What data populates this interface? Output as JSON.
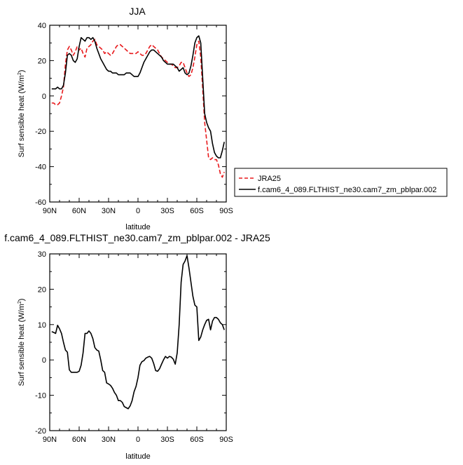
{
  "chart_data": [
    {
      "type": "line",
      "title": "JJA",
      "xlabel": "latitude",
      "ylabel": "Surf sensible heat (W/m²)",
      "ylabel_main": "Surf sensible heat (W/m",
      "ylabel_sup": "2",
      "ylabel_end": ")",
      "xlim": [
        90,
        -90
      ],
      "ylim": [
        -60,
        40
      ],
      "xticks": [
        90,
        60,
        30,
        0,
        -30,
        -60,
        -90
      ],
      "xtick_labels": [
        "90N",
        "60N",
        "30N",
        "0",
        "30S",
        "60S",
        "90S"
      ],
      "yticks": [
        -60,
        -40,
        -20,
        0,
        20,
        40
      ],
      "ytick_labels": [
        "-60",
        "-40",
        "-20",
        "0",
        "20",
        "40"
      ],
      "legend_position": "right",
      "series": [
        {
          "name": "JRA25",
          "color": "#e8191c",
          "dash": "dashed",
          "points": [
            [
              88,
              -4
            ],
            [
              86,
              -4
            ],
            [
              84,
              -5
            ],
            [
              82,
              -5
            ],
            [
              80,
              -4
            ],
            [
              78,
              0
            ],
            [
              76,
              5
            ],
            [
              74,
              18
            ],
            [
              72,
              26
            ],
            [
              70,
              28
            ],
            [
              68,
              26
            ],
            [
              66,
              23
            ],
            [
              64,
              25
            ],
            [
              62,
              28
            ],
            [
              60,
              26
            ],
            [
              58,
              27
            ],
            [
              56,
              24
            ],
            [
              54,
              22
            ],
            [
              52,
              27
            ],
            [
              50,
              28
            ],
            [
              48,
              29
            ],
            [
              46,
              31
            ],
            [
              44,
              32
            ],
            [
              42,
              29
            ],
            [
              40,
              28
            ],
            [
              38,
              27
            ],
            [
              36,
              26
            ],
            [
              34,
              24
            ],
            [
              32,
              25
            ],
            [
              30,
              24
            ],
            [
              28,
              23
            ],
            [
              26,
              24
            ],
            [
              24,
              26
            ],
            [
              22,
              28
            ],
            [
              20,
              29
            ],
            [
              18,
              29
            ],
            [
              16,
              28
            ],
            [
              14,
              27
            ],
            [
              12,
              26
            ],
            [
              10,
              25
            ],
            [
              8,
              24
            ],
            [
              6,
              24
            ],
            [
              4,
              24
            ],
            [
              2,
              24
            ],
            [
              0,
              25
            ],
            [
              -2,
              24
            ],
            [
              -4,
              23
            ],
            [
              -6,
              23
            ],
            [
              -8,
              24
            ],
            [
              -10,
              26
            ],
            [
              -12,
              28
            ],
            [
              -14,
              29
            ],
            [
              -16,
              28
            ],
            [
              -18,
              27
            ],
            [
              -20,
              26
            ],
            [
              -22,
              24
            ],
            [
              -24,
              22
            ],
            [
              -26,
              21
            ],
            [
              -28,
              20
            ],
            [
              -30,
              19
            ],
            [
              -32,
              18
            ],
            [
              -34,
              18
            ],
            [
              -36,
              17
            ],
            [
              -38,
              16
            ],
            [
              -40,
              16
            ],
            [
              -42,
              17
            ],
            [
              -44,
              19
            ],
            [
              -46,
              19
            ],
            [
              -48,
              16
            ],
            [
              -50,
              13
            ],
            [
              -52,
              11
            ],
            [
              -54,
              12
            ],
            [
              -56,
              16
            ],
            [
              -58,
              22
            ],
            [
              -60,
              29
            ],
            [
              -62,
              31
            ],
            [
              -64,
              22
            ],
            [
              -66,
              4
            ],
            [
              -68,
              -15
            ],
            [
              -70,
              -25
            ],
            [
              -72,
              -35
            ],
            [
              -74,
              -36
            ],
            [
              -76,
              -35
            ],
            [
              -78,
              -36
            ],
            [
              -80,
              -36
            ],
            [
              -82,
              -39
            ],
            [
              -84,
              -44
            ],
            [
              -86,
              -46
            ],
            [
              -88,
              -43
            ]
          ]
        },
        {
          "name": "f.cam6_4_089.FLTHIST_ne30.cam7_zm_pblpar.002",
          "color": "#000000",
          "dash": "solid",
          "points": [
            [
              88,
              4
            ],
            [
              86,
              4
            ],
            [
              84,
              4
            ],
            [
              82,
              5
            ],
            [
              80,
              4
            ],
            [
              78,
              4
            ],
            [
              76,
              6
            ],
            [
              74,
              13
            ],
            [
              72,
              23
            ],
            [
              70,
              24
            ],
            [
              68,
              23
            ],
            [
              66,
              20
            ],
            [
              64,
              19
            ],
            [
              62,
              21
            ],
            [
              60,
              28
            ],
            [
              58,
              33
            ],
            [
              56,
              32
            ],
            [
              54,
              31
            ],
            [
              52,
              33
            ],
            [
              50,
              33
            ],
            [
              48,
              32
            ],
            [
              46,
              33
            ],
            [
              44,
              31
            ],
            [
              42,
              27
            ],
            [
              40,
              24
            ],
            [
              38,
              21
            ],
            [
              36,
              19
            ],
            [
              34,
              17
            ],
            [
              32,
              15
            ],
            [
              30,
              14
            ],
            [
              28,
              14
            ],
            [
              26,
              13
            ],
            [
              24,
              13
            ],
            [
              22,
              13
            ],
            [
              20,
              12
            ],
            [
              18,
              12
            ],
            [
              16,
              12
            ],
            [
              14,
              12
            ],
            [
              12,
              13
            ],
            [
              10,
              13
            ],
            [
              8,
              13
            ],
            [
              6,
              12
            ],
            [
              4,
              11
            ],
            [
              2,
              11
            ],
            [
              0,
              11
            ],
            [
              -2,
              13
            ],
            [
              -4,
              16
            ],
            [
              -6,
              19
            ],
            [
              -8,
              21
            ],
            [
              -10,
              23
            ],
            [
              -12,
              25
            ],
            [
              -14,
              26
            ],
            [
              -16,
              26
            ],
            [
              -18,
              25
            ],
            [
              -20,
              24
            ],
            [
              -22,
              23
            ],
            [
              -24,
              22
            ],
            [
              -26,
              20
            ],
            [
              -28,
              19
            ],
            [
              -30,
              18
            ],
            [
              -32,
              18
            ],
            [
              -34,
              18
            ],
            [
              -36,
              18
            ],
            [
              -38,
              17
            ],
            [
              -40,
              16
            ],
            [
              -42,
              14
            ],
            [
              -44,
              15
            ],
            [
              -46,
              16
            ],
            [
              -48,
              13
            ],
            [
              -50,
              12
            ],
            [
              -52,
              13
            ],
            [
              -54,
              17
            ],
            [
              -56,
              23
            ],
            [
              -58,
              30
            ],
            [
              -60,
              33
            ],
            [
              -62,
              34
            ],
            [
              -64,
              30
            ],
            [
              -66,
              10
            ],
            [
              -68,
              -10
            ],
            [
              -70,
              -15
            ],
            [
              -72,
              -18
            ],
            [
              -74,
              -20
            ],
            [
              -76,
              -27
            ],
            [
              -78,
              -32
            ],
            [
              -80,
              -34
            ],
            [
              -82,
              -35
            ],
            [
              -84,
              -35
            ],
            [
              -86,
              -31
            ],
            [
              -88,
              -26
            ]
          ]
        }
      ]
    },
    {
      "type": "line",
      "title": "f.cam6_4_089.FLTHIST_ne30.cam7_zm_pblpar.002 - JRA25",
      "xlabel": "latitude",
      "ylabel": "Surf sensible heat (W/m²)",
      "ylabel_main": "Surf sensible heat (W/m",
      "ylabel_sup": "2",
      "ylabel_end": ")",
      "xlim": [
        90,
        -90
      ],
      "ylim": [
        -20,
        30
      ],
      "xticks": [
        90,
        60,
        30,
        0,
        -30,
        -60,
        -90
      ],
      "xtick_labels": [
        "90N",
        "60N",
        "30N",
        "0",
        "30S",
        "60S",
        "90S"
      ],
      "yticks": [
        -20,
        -10,
        0,
        10,
        20,
        30
      ],
      "ytick_labels": [
        "-20",
        "-10",
        "0",
        "10",
        "20",
        "30"
      ],
      "series": [
        {
          "color": "#000000",
          "dash": "solid",
          "points": [
            [
              88,
              8
            ],
            [
              86,
              7.8
            ],
            [
              84,
              7.5
            ],
            [
              82,
              9.8
            ],
            [
              80,
              8.8
            ],
            [
              78,
              7.5
            ],
            [
              76,
              5
            ],
            [
              74,
              2.8
            ],
            [
              72,
              2.2
            ],
            [
              70,
              -2.8
            ],
            [
              68,
              -3.5
            ],
            [
              66,
              -3.5
            ],
            [
              64,
              -3.5
            ],
            [
              62,
              -3.5
            ],
            [
              60,
              -3.2
            ],
            [
              58,
              -1.5
            ],
            [
              56,
              2
            ],
            [
              54,
              7.5
            ],
            [
              52,
              7.5
            ],
            [
              50,
              8.2
            ],
            [
              48,
              7.5
            ],
            [
              46,
              6
            ],
            [
              44,
              3.5
            ],
            [
              42,
              2.8
            ],
            [
              40,
              2.5
            ],
            [
              38,
              0
            ],
            [
              36,
              -3
            ],
            [
              34,
              -3.5
            ],
            [
              32,
              -6.5
            ],
            [
              30,
              -6.8
            ],
            [
              28,
              -7.2
            ],
            [
              26,
              -8
            ],
            [
              24,
              -9.2
            ],
            [
              22,
              -10
            ],
            [
              20,
              -11.5
            ],
            [
              18,
              -11.5
            ],
            [
              16,
              -12
            ],
            [
              14,
              -13.2
            ],
            [
              12,
              -13.5
            ],
            [
              10,
              -13.8
            ],
            [
              8,
              -13
            ],
            [
              6,
              -11.5
            ],
            [
              4,
              -9
            ],
            [
              2,
              -7.5
            ],
            [
              0,
              -5
            ],
            [
              -2,
              -1.5
            ],
            [
              -4,
              -0.5
            ],
            [
              -6,
              -0.2
            ],
            [
              -8,
              0.5
            ],
            [
              -10,
              0.8
            ],
            [
              -12,
              1
            ],
            [
              -14,
              0.5
            ],
            [
              -16,
              -1
            ],
            [
              -18,
              -3
            ],
            [
              -20,
              -3.2
            ],
            [
              -22,
              -2.5
            ],
            [
              -24,
              -1.2
            ],
            [
              -26,
              0
            ],
            [
              -28,
              1
            ],
            [
              -30,
              0.5
            ],
            [
              -32,
              1
            ],
            [
              -34,
              0.8
            ],
            [
              -36,
              0.2
            ],
            [
              -38,
              -1.2
            ],
            [
              -40,
              2
            ],
            [
              -42,
              10
            ],
            [
              -44,
              22
            ],
            [
              -46,
              27
            ],
            [
              -48,
              28
            ],
            [
              -50,
              29.5
            ],
            [
              -52,
              26
            ],
            [
              -54,
              22
            ],
            [
              -56,
              18
            ],
            [
              -58,
              15.5
            ],
            [
              -60,
              15
            ],
            [
              -62,
              5.5
            ],
            [
              -64,
              6.5
            ],
            [
              -66,
              8.5
            ],
            [
              -68,
              10
            ],
            [
              -70,
              11.2
            ],
            [
              -72,
              11.5
            ],
            [
              -74,
              8.5
            ],
            [
              -76,
              11
            ],
            [
              -78,
              12
            ],
            [
              -80,
              12
            ],
            [
              -82,
              11.5
            ],
            [
              -84,
              10.5
            ],
            [
              -86,
              10
            ],
            [
              -88,
              8.5
            ]
          ]
        }
      ]
    }
  ]
}
